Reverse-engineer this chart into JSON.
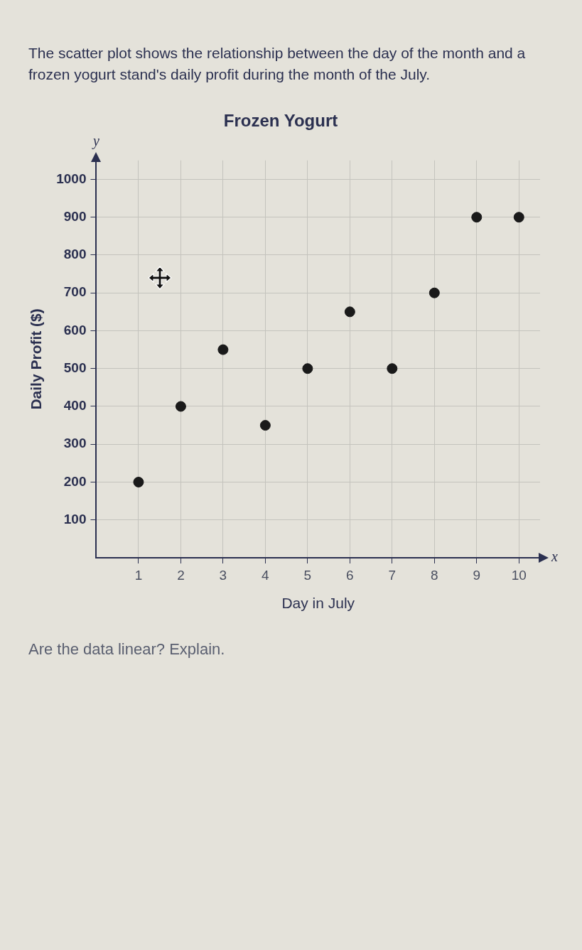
{
  "chart_data": {
    "type": "scatter",
    "title": "Frozen Yogurt",
    "xlabel": "Day in July",
    "ylabel": "Daily Profit ($)",
    "x": [
      1,
      2,
      3,
      4,
      5,
      6,
      7,
      8,
      9,
      10
    ],
    "series": [
      {
        "color": "#1a1a1a",
        "values": [
          200,
          400,
          550,
          350,
          500,
          650,
          500,
          700,
          900,
          900
        ]
      }
    ],
    "xlim": [
      0,
      10.5
    ],
    "xticks": [
      1,
      2,
      3,
      4,
      5,
      6,
      7,
      8,
      9,
      10
    ],
    "ylim": [
      0,
      1050
    ],
    "yticks": [
      100,
      200,
      300,
      400,
      500,
      600,
      700,
      800,
      900,
      1000
    ],
    "grid": true,
    "marker": "circle",
    "annotations": [
      "The scatter plot shows the relationship between the day of the month and a frozen yogurt stand's daily profit during the month of the July.",
      "Are the data linear? Explain.",
      "x",
      "y"
    ]
  }
}
